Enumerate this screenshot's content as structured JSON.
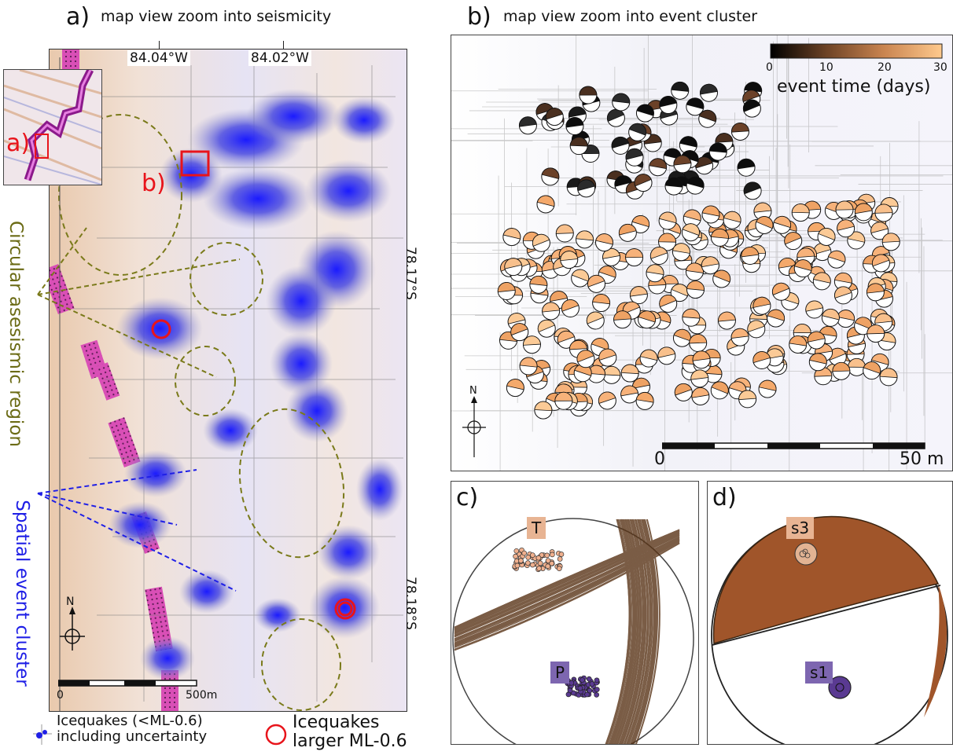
{
  "panel_a": {
    "letter": "a)",
    "title": "map view zoom into seismicity",
    "lon_labels": [
      "84.04°W",
      "84.02°W"
    ],
    "lat_labels": [
      "78.17°S",
      "78.18°S"
    ],
    "inset_labels": [
      "a)",
      "b)"
    ],
    "side_label_1": "Circular asesismic region",
    "side_label_2": "Spatial event cluster",
    "north": "N",
    "scale": {
      "start": "0",
      "end": "500m"
    },
    "legend": {
      "small": [
        "Icequakes (<ML-0.6)",
        "including uncertainty"
      ],
      "large": [
        "Icequakes",
        "larger ML-0.6"
      ]
    }
  },
  "panel_b": {
    "letter": "b)",
    "title": "map view zoom into event cluster",
    "colorbar": {
      "ticks": [
        "0",
        "10",
        "20",
        "30"
      ],
      "label": "event time (days)"
    },
    "north": "N",
    "scale": {
      "start": "0",
      "end": "50 m"
    }
  },
  "panel_c": {
    "letter": "c)",
    "labels": [
      "T",
      "P"
    ]
  },
  "panel_d": {
    "letter": "d)",
    "labels": [
      "s3",
      "s1"
    ]
  },
  "colors": {
    "red": "#e8141b",
    "blue": "#1f1fe6",
    "olive": "#6b6b15",
    "magenta": "#cc33aa",
    "brown": "#5a3518",
    "fill_brown": "#a0552a",
    "peach": "#f4b47a",
    "purple": "#5a3a92"
  }
}
